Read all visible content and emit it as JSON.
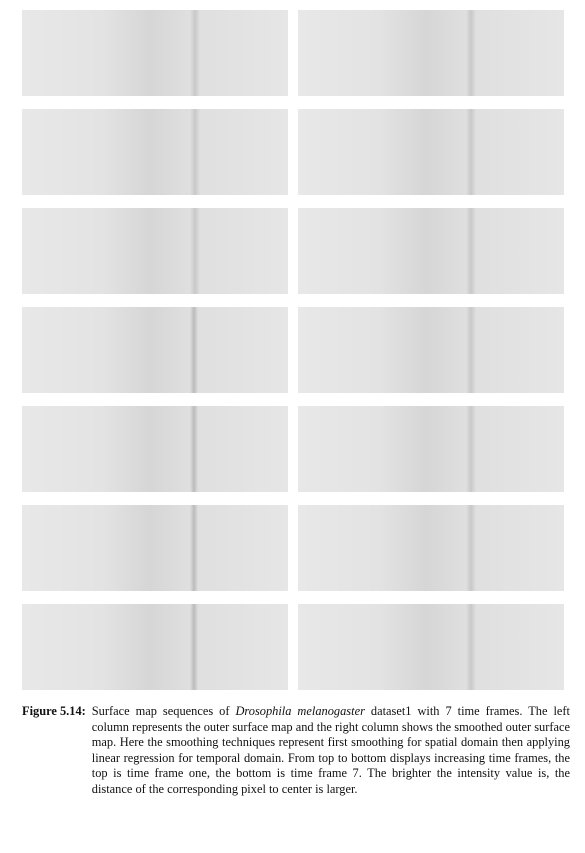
{
  "figure": {
    "label": "Figure 5.14:",
    "caption_part1": "Surface map sequences of ",
    "caption_species": "Drosophila melanogaster",
    "caption_part2": " dataset1 with 7 time frames. The left column represents the outer surface map and the right column shows the smoothed outer surface map. Here the smoothing techniques represent first smoothing for spatial domain then applying linear regression for temporal domain. From top to bottom displays increasing time frames, the top is time frame one, the bottom is time frame 7. The brighter the intensity value is, the distance of the corresponding pixel to center is larger."
  },
  "panels": {
    "rows": 7,
    "columns": [
      "outer surface map",
      "smoothed outer surface map"
    ]
  }
}
